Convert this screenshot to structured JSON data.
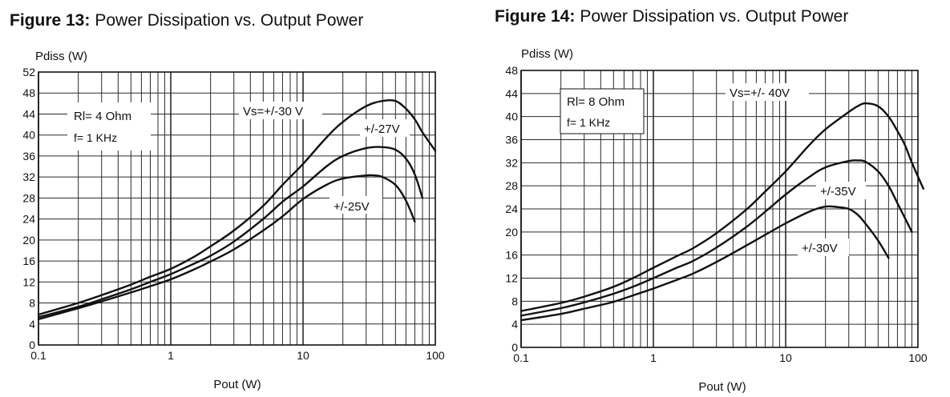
{
  "chart_data": [
    {
      "type": "line",
      "title_prefix": "Figure 13:",
      "title": "Power Dissipation vs. Output Power",
      "xlabel": "Pout (W)",
      "ylabel": "Pdiss (W)",
      "x_scale": "log",
      "xlim": [
        0.1,
        100
      ],
      "ylim": [
        0,
        52
      ],
      "x_ticks": [
        0.1,
        1,
        10,
        100
      ],
      "x_tick_labels": [
        "0.1",
        "1",
        "10",
        "100"
      ],
      "y_ticks": [
        0,
        4,
        8,
        12,
        16,
        20,
        24,
        28,
        32,
        36,
        40,
        44,
        48,
        52
      ],
      "grid": true,
      "conditions": [
        "Rl= 4 Ohm",
        "f= 1 KHz"
      ],
      "series": [
        {
          "name": "Vs=+/-30 V",
          "x": [
            0.1,
            0.2,
            0.3,
            0.5,
            0.7,
            1,
            1.5,
            2,
            3,
            5,
            7,
            10,
            15,
            20,
            30,
            40,
            50,
            60,
            70,
            80,
            100
          ],
          "y": [
            5.8,
            8.0,
            9.5,
            11.5,
            13.0,
            14.5,
            16.8,
            18.8,
            21.8,
            26.5,
            30.5,
            34.5,
            39.5,
            42.5,
            45.5,
            46.5,
            46.5,
            45.0,
            43.0,
            40.5,
            37.0
          ]
        },
        {
          "name": "+/-27V",
          "x": [
            0.1,
            0.2,
            0.3,
            0.5,
            0.7,
            1,
            1.5,
            2,
            3,
            5,
            7,
            10,
            15,
            20,
            30,
            40,
            50,
            60,
            70,
            80
          ],
          "y": [
            5.3,
            7.3,
            8.7,
            10.6,
            12.0,
            13.5,
            15.5,
            17.0,
            19.7,
            24.0,
            27.3,
            30.2,
            34.0,
            36.0,
            37.5,
            37.7,
            37.2,
            35.5,
            32.5,
            28.0
          ]
        },
        {
          "name": "+/-25V",
          "x": [
            0.1,
            0.2,
            0.3,
            0.5,
            0.7,
            1,
            1.5,
            2,
            3,
            5,
            7,
            10,
            15,
            20,
            30,
            35,
            40,
            50,
            60,
            70
          ],
          "y": [
            4.9,
            7.0,
            8.3,
            10.0,
            11.2,
            12.5,
            14.4,
            15.9,
            18.2,
            21.8,
            24.5,
            27.8,
            30.5,
            31.7,
            32.3,
            32.3,
            32.0,
            30.5,
            27.5,
            23.5
          ]
        }
      ]
    },
    {
      "type": "line",
      "title_prefix": "Figure 14:",
      "title": "Power Dissipation vs. Output Power",
      "xlabel": "Pout (W)",
      "ylabel": "Pdiss (W)",
      "x_scale": "log",
      "xlim": [
        0.1,
        100
      ],
      "ylim": [
        0,
        48
      ],
      "x_ticks": [
        0.1,
        1,
        10,
        100
      ],
      "x_tick_labels": [
        "0.1",
        "1",
        "10",
        "100"
      ],
      "y_ticks": [
        0,
        4,
        8,
        12,
        16,
        20,
        24,
        28,
        32,
        36,
        40,
        44,
        48
      ],
      "grid": true,
      "conditions": [
        "Rl= 8 Ohm",
        "f= 1 KHz"
      ],
      "series": [
        {
          "name": "Vs=+/- 40V",
          "x": [
            0.1,
            0.2,
            0.3,
            0.5,
            0.7,
            1,
            1.5,
            2,
            3,
            5,
            7,
            10,
            15,
            20,
            30,
            35,
            40,
            50,
            60,
            70,
            80,
            90,
            110
          ],
          "y": [
            6.3,
            7.7,
            8.8,
            10.5,
            12.0,
            13.8,
            15.8,
            17.2,
            19.8,
            23.8,
            27.0,
            30.5,
            35.0,
            37.8,
            40.8,
            41.8,
            42.3,
            41.8,
            40.0,
            37.5,
            35.0,
            32.0,
            27.5
          ]
        },
        {
          "name": "+/-35V",
          "x": [
            0.1,
            0.2,
            0.3,
            0.5,
            0.7,
            1,
            1.5,
            2,
            3,
            5,
            7,
            10,
            15,
            20,
            30,
            35,
            40,
            50,
            60,
            70,
            90
          ],
          "y": [
            5.5,
            6.8,
            7.8,
            9.3,
            10.5,
            12.0,
            13.8,
            15.0,
            17.3,
            20.8,
            23.5,
            26.5,
            29.5,
            31.2,
            32.3,
            32.4,
            32.2,
            30.5,
            28.0,
            25.0,
            20.0
          ]
        },
        {
          "name": "+/-30V",
          "x": [
            0.1,
            0.2,
            0.3,
            0.5,
            0.7,
            1,
            1.5,
            2,
            3,
            5,
            7,
            10,
            15,
            20,
            25,
            30,
            35,
            40,
            50,
            60
          ],
          "y": [
            4.7,
            5.8,
            6.7,
            7.9,
            9.0,
            10.2,
            11.7,
            12.8,
            14.8,
            17.6,
            19.5,
            21.5,
            23.5,
            24.4,
            24.3,
            24.0,
            23.0,
            21.5,
            18.5,
            15.5
          ]
        }
      ]
    }
  ]
}
